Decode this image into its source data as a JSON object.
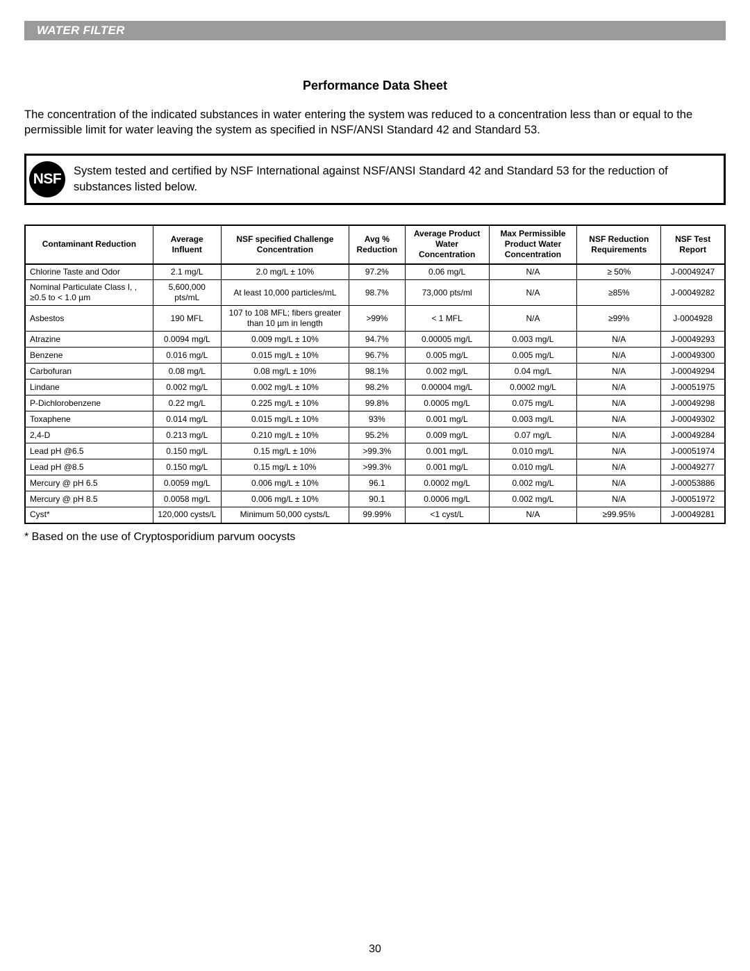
{
  "section_header": "WATER FILTER",
  "title": "Performance Data Sheet",
  "intro": "The concentration of the indicated substances in water entering the system was reduced to a concentration less than or equal to the permissible limit for water leaving the system as specified in NSF/ANSI Standard 42 and Standard 53.",
  "nsf_logo_text": "NSF",
  "nsf_statement": "System tested and certified by NSF International against NSF/ANSI Standard 42 and Standard 53 for the reduction of substances listed below.",
  "table": {
    "columns": [
      "Contaminant Reduction",
      "Average Influent",
      "NSF specified Challenge Concentration",
      "Avg % Reduction",
      "Average Product Water Concentration",
      "Max Permissible Product Water Concentration",
      "NSF Reduction Requirements",
      "NSF Test Report"
    ],
    "rows": [
      {
        "tall": false,
        "cells": [
          "Chlorine Taste and Odor",
          "2.1 mg/L",
          "2.0 mg/L ± 10%",
          "97.2%",
          "0.06 mg/L",
          "N/A",
          "≥ 50%",
          "J-00049247"
        ]
      },
      {
        "tall": true,
        "cells": [
          "Nominal Particulate Class I, , ≥0.5 to < 1.0 µm",
          "5,600,000 pts/mL",
          "At least 10,000 particles/mL",
          "98.7%",
          "73,000 pts/ml",
          "N/A",
          "≥85%",
          "J-00049282"
        ]
      },
      {
        "tall": true,
        "cells": [
          "Asbestos",
          "190 MFL",
          "107 to 108 MFL; fibers greater than 10 µm in length",
          ">99%",
          "< 1 MFL",
          "N/A",
          "≥99%",
          "J-0004928"
        ]
      },
      {
        "tall": false,
        "cells": [
          "Atrazine",
          "0.0094 mg/L",
          "0.009 mg/L ± 10%",
          "94.7%",
          "0.00005 mg/L",
          "0.003 mg/L",
          "N/A",
          "J-00049293"
        ]
      },
      {
        "tall": false,
        "cells": [
          "Benzene",
          "0.016 mg/L",
          "0.015 mg/L ± 10%",
          "96.7%",
          "0.005 mg/L",
          "0.005 mg/L",
          "N/A",
          "J-00049300"
        ]
      },
      {
        "tall": false,
        "cells": [
          "Carbofuran",
          "0.08 mg/L",
          "0.08 mg/L ± 10%",
          "98.1%",
          "0.002 mg/L",
          "0.04 mg/L",
          "N/A",
          "J-00049294"
        ]
      },
      {
        "tall": false,
        "cells": [
          "Lindane",
          "0.002 mg/L",
          "0.002 mg/L ± 10%",
          "98.2%",
          "0.00004 mg/L",
          "0.0002 mg/L",
          "N/A",
          "J-00051975"
        ]
      },
      {
        "tall": false,
        "cells": [
          "P-Dichlorobenzene",
          "0.22 mg/L",
          "0.225 mg/L ± 10%",
          "99.8%",
          "0.0005 mg/L",
          "0.075 mg/L",
          "N/A",
          "J-00049298"
        ]
      },
      {
        "tall": false,
        "cells": [
          "Toxaphene",
          "0.014 mg/L",
          "0.015 mg/L ± 10%",
          "93%",
          "0.001 mg/L",
          "0.003 mg/L",
          "N/A",
          "J-00049302"
        ]
      },
      {
        "tall": false,
        "cells": [
          "2,4-D",
          "0.213 mg/L",
          "0.210 mg/L ± 10%",
          "95.2%",
          "0.009 mg/L",
          "0.07 mg/L",
          "N/A",
          "J-00049284"
        ]
      },
      {
        "tall": false,
        "cells": [
          "Lead pH @6.5",
          "0.150 mg/L",
          "0.15 mg/L ± 10%",
          ">99.3%",
          "0.001 mg/L",
          "0.010 mg/L",
          "N/A",
          "J-00051974"
        ]
      },
      {
        "tall": false,
        "cells": [
          "Lead pH @8.5",
          "0.150 mg/L",
          "0.15 mg/L ± 10%",
          ">99.3%",
          "0.001 mg/L",
          "0.010 mg/L",
          "N/A",
          "J-00049277"
        ]
      },
      {
        "tall": false,
        "cells": [
          "Mercury @ pH 6.5",
          "0.0059 mg/L",
          "0.006 mg/L ± 10%",
          "96.1",
          "0.0002 mg/L",
          "0.002 mg/L",
          "N/A",
          "J-00053886"
        ]
      },
      {
        "tall": false,
        "cells": [
          "Mercury @ pH 8.5",
          "0.0058 mg/L",
          "0.006 mg/L ± 10%",
          "90.1",
          "0.0006 mg/L",
          "0.002 mg/L",
          "N/A",
          "J-00051972"
        ]
      },
      {
        "tall": false,
        "cells": [
          "Cyst*",
          "120,000 cysts/L",
          "Minimum 50,000 cysts/L",
          "99.99%",
          "<1 cyst/L",
          "N/A",
          "≥99.95%",
          "J-00049281"
        ]
      }
    ]
  },
  "footnote": "* Based on the use of Cryptosporidium parvum oocysts",
  "page_number": "30"
}
